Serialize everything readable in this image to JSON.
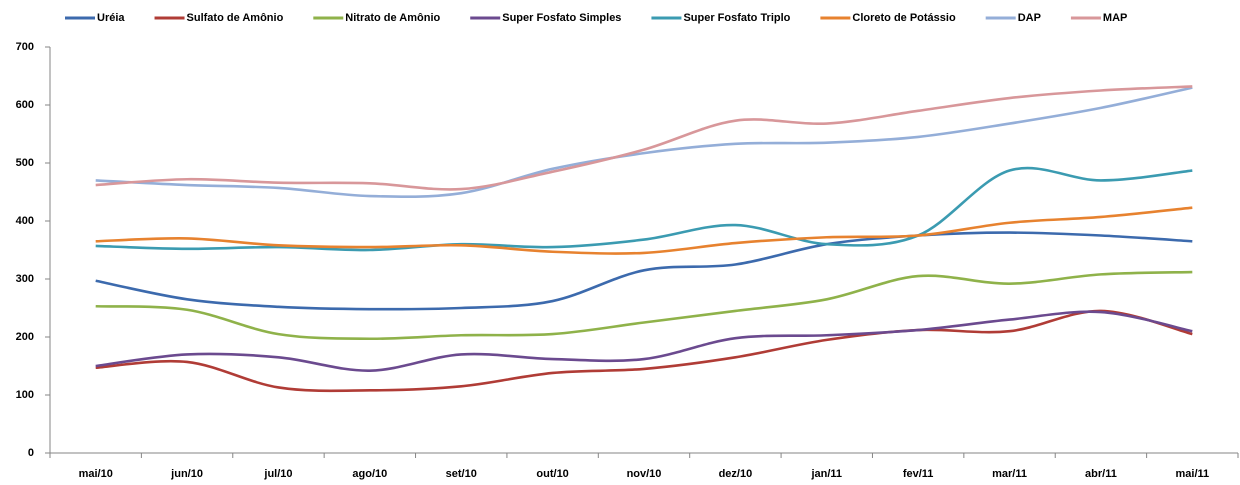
{
  "chart_data": {
    "type": "line",
    "categories": [
      "mai/10",
      "jun/10",
      "jul/10",
      "ago/10",
      "set/10",
      "out/10",
      "nov/10",
      "dez/10",
      "jan/11",
      "fev/11",
      "mar/11",
      "abr/11",
      "mai/11"
    ],
    "series": [
      {
        "name": "Uréia",
        "color": "#3c6aad",
        "values": [
          297,
          265,
          252,
          248,
          250,
          262,
          315,
          325,
          360,
          375,
          380,
          375,
          365
        ]
      },
      {
        "name": "Sulfato de Amônio",
        "color": "#b03c36",
        "values": [
          147,
          157,
          113,
          108,
          115,
          138,
          145,
          165,
          195,
          212,
          210,
          245,
          205
        ]
      },
      {
        "name": "Nitrato de Amônio",
        "color": "#8fb24a",
        "values": [
          253,
          247,
          205,
          197,
          203,
          205,
          225,
          245,
          265,
          305,
          292,
          308,
          312
        ]
      },
      {
        "name": "Super Fosfato Simples",
        "color": "#6b4a8f",
        "values": [
          150,
          170,
          165,
          142,
          170,
          162,
          162,
          198,
          203,
          212,
          230,
          243,
          210
        ]
      },
      {
        "name": "Super Fosfato Triplo",
        "color": "#3b9bb1",
        "values": [
          357,
          352,
          355,
          350,
          360,
          355,
          368,
          393,
          360,
          375,
          487,
          470,
          487
        ]
      },
      {
        "name": "Cloreto de Potássio",
        "color": "#e7822f",
        "values": [
          365,
          370,
          358,
          355,
          358,
          347,
          345,
          362,
          372,
          375,
          397,
          407,
          423
        ]
      },
      {
        "name": "DAP",
        "color": "#94aed8",
        "values": [
          470,
          462,
          457,
          443,
          448,
          490,
          517,
          533,
          535,
          545,
          568,
          595,
          630
        ]
      },
      {
        "name": "MAP",
        "color": "#d8979a",
        "values": [
          462,
          472,
          466,
          465,
          455,
          485,
          523,
          573,
          568,
          590,
          612,
          625,
          632
        ]
      }
    ],
    "ylim": [
      0,
      700
    ],
    "yticks": [
      0,
      100,
      200,
      300,
      400,
      500,
      600,
      700
    ],
    "grid": false,
    "legend": "top"
  }
}
